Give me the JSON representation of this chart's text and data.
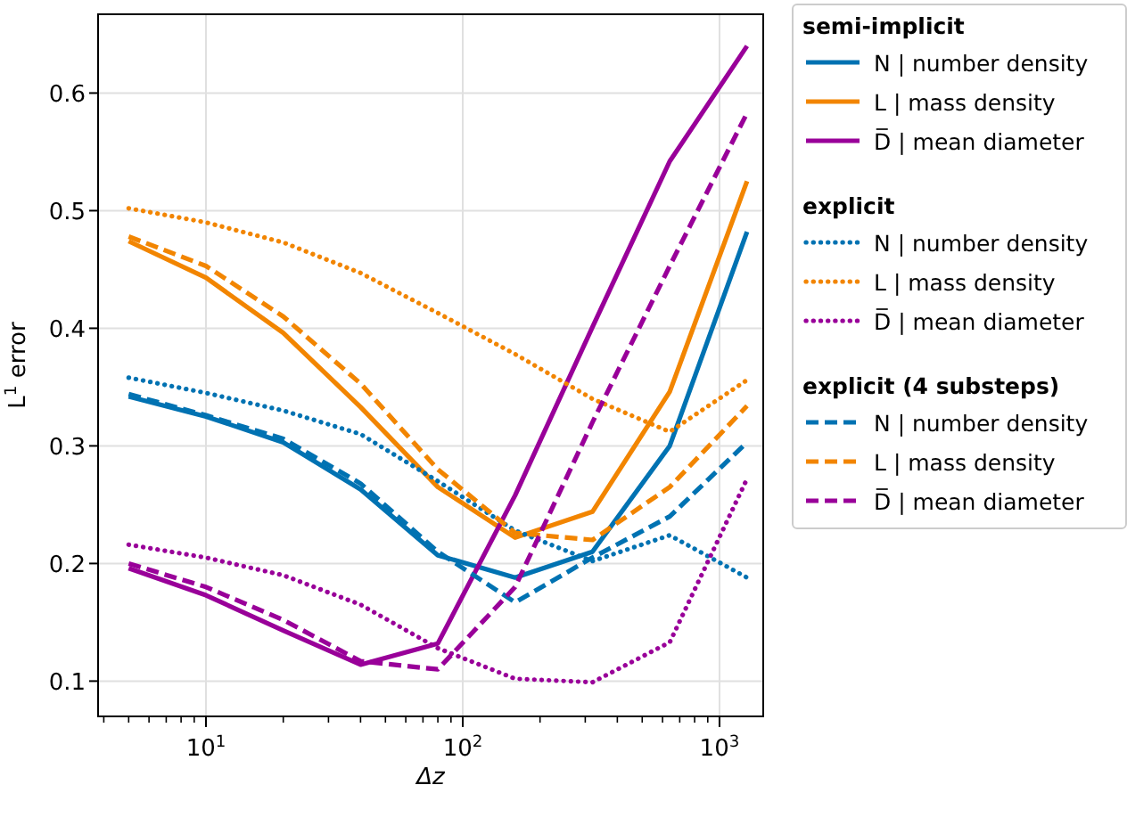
{
  "chart_data": {
    "type": "line",
    "xlabel": "Δz",
    "ylabel": "L$^{1}$ error",
    "x": [
      5,
      10,
      20,
      40,
      80,
      160,
      320,
      640,
      1280
    ],
    "log": "x",
    "grid": true,
    "legend": "right",
    "marker": "none",
    "xlim": [
      3.8,
      1480
    ],
    "xticks": [
      {
        "value": 4,
        "label": null
      },
      {
        "value": 5,
        "label": null
      },
      {
        "value": 6,
        "label": null
      },
      {
        "value": 7,
        "label": null
      },
      {
        "value": 8,
        "label": null
      },
      {
        "value": 9,
        "label": null
      },
      {
        "value": 10,
        "label": "10$^{1}$"
      },
      {
        "value": 20,
        "label": null
      },
      {
        "value": 30,
        "label": null
      },
      {
        "value": 40,
        "label": null
      },
      {
        "value": 50,
        "label": null
      },
      {
        "value": 60,
        "label": null
      },
      {
        "value": 70,
        "label": null
      },
      {
        "value": 80,
        "label": null
      },
      {
        "value": 90,
        "label": null
      },
      {
        "value": 100,
        "label": "10$^{2}$"
      },
      {
        "value": 200,
        "label": null
      },
      {
        "value": 300,
        "label": null
      },
      {
        "value": 400,
        "label": null
      },
      {
        "value": 500,
        "label": null
      },
      {
        "value": 600,
        "label": null
      },
      {
        "value": 700,
        "label": null
      },
      {
        "value": 800,
        "label": null
      },
      {
        "value": 900,
        "label": null
      },
      {
        "value": 1000,
        "label": "10$^{3}$"
      }
    ],
    "ylim": [
      0.07,
      0.667
    ],
    "yticks": [
      0.1,
      0.2,
      0.3,
      0.4,
      0.5,
      0.6
    ],
    "annotations": [
      "semi-implicit",
      "explicit",
      "explicit (4 substeps)"
    ],
    "series": [
      {
        "name": "N | number density",
        "color": "#0072b2",
        "line_style": "solid",
        "values": [
          0.342,
          0.325,
          0.303,
          0.263,
          0.207,
          0.188,
          0.21,
          0.3,
          0.482
        ]
      },
      {
        "name": "L | mass density",
        "color": "#f28500",
        "line_style": "solid",
        "values": [
          0.474,
          0.443,
          0.396,
          0.333,
          0.265,
          0.222,
          0.244,
          0.346,
          0.525
        ]
      },
      {
        "name": "D̅ | mean diameter",
        "color": "#990099",
        "line_style": "solid",
        "values": [
          0.196,
          0.173,
          0.143,
          0.114,
          0.132,
          0.258,
          0.401,
          0.542,
          0.64
        ]
      },
      {
        "name": "N | number density",
        "color": "#0072b2",
        "line_style": "dotted",
        "values": [
          0.358,
          0.345,
          0.33,
          0.31,
          0.27,
          0.228,
          0.202,
          0.224,
          0.188
        ]
      },
      {
        "name": "L | mass density",
        "color": "#f28500",
        "line_style": "dotted",
        "values": [
          0.502,
          0.49,
          0.473,
          0.447,
          0.413,
          0.378,
          0.34,
          0.312,
          0.356
        ]
      },
      {
        "name": "D̅ | mean diameter",
        "color": "#990099",
        "line_style": "dotted",
        "values": [
          0.216,
          0.205,
          0.19,
          0.165,
          0.128,
          0.102,
          0.099,
          0.133,
          0.272
        ]
      },
      {
        "name": "N | number density",
        "color": "#0072b2",
        "line_style": "dashed",
        "values": [
          0.344,
          0.326,
          0.306,
          0.268,
          0.21,
          0.167,
          0.205,
          0.24,
          0.303
        ]
      },
      {
        "name": "L | mass density",
        "color": "#f28500",
        "line_style": "dashed",
        "values": [
          0.478,
          0.453,
          0.41,
          0.353,
          0.28,
          0.226,
          0.22,
          0.265,
          0.334
        ]
      },
      {
        "name": "D̅ | mean diameter",
        "color": "#990099",
        "line_style": "dashed",
        "values": [
          0.2,
          0.18,
          0.152,
          0.117,
          0.11,
          0.18,
          0.32,
          0.453,
          0.583
        ]
      }
    ]
  }
}
